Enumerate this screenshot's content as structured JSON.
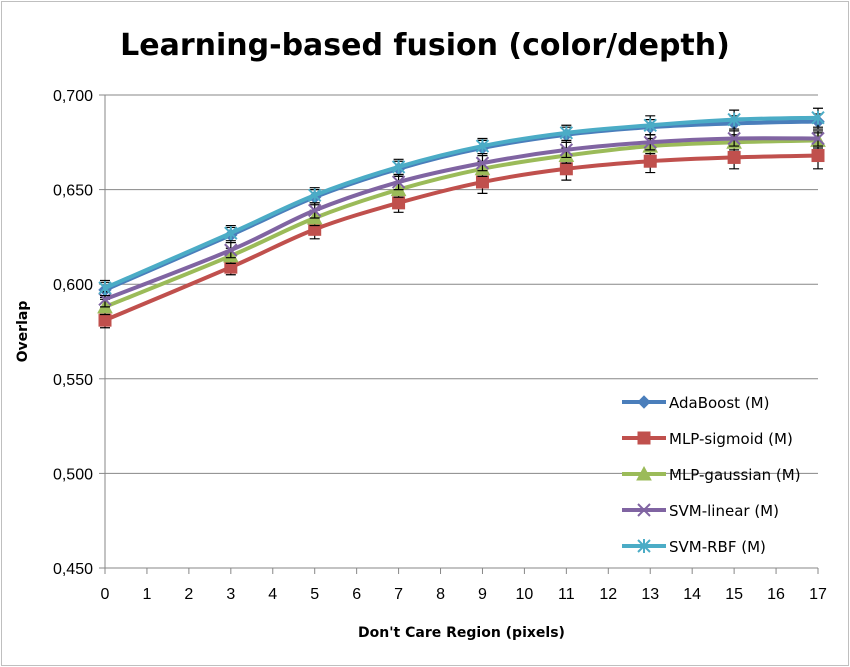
{
  "chart_data": {
    "type": "line",
    "title": "Learning-based fusion (color/depth)",
    "xlabel": "Don't Care Region (pixels)",
    "ylabel": "Overlap",
    "x": [
      0,
      3,
      5,
      7,
      9,
      11,
      13,
      15,
      17
    ],
    "xlim": [
      0,
      17
    ],
    "xticks": [
      "0",
      "1",
      "2",
      "3",
      "4",
      "5",
      "6",
      "7",
      "8",
      "9",
      "10",
      "11",
      "12",
      "13",
      "14",
      "15",
      "16",
      "17"
    ],
    "ylim": [
      0.45,
      0.7
    ],
    "yticks": [
      "0,450",
      "0,500",
      "0,550",
      "0,600",
      "0,650",
      "0,700"
    ],
    "grid": "horizontal",
    "legend_position": "bottom-right",
    "error_bars": true,
    "series": [
      {
        "name": "AdaBoost (M)",
        "color": "#4a7ebb",
        "marker": "diamond",
        "values": [
          0.597,
          0.626,
          0.646,
          0.661,
          0.672,
          0.679,
          0.683,
          0.685,
          0.686
        ],
        "errors": [
          0.004,
          0.004,
          0.004,
          0.004,
          0.004,
          0.004,
          0.004,
          0.004,
          0.004
        ]
      },
      {
        "name": "MLP-sigmoid (M)",
        "color": "#c0504d",
        "marker": "square",
        "values": [
          0.581,
          0.609,
          0.629,
          0.643,
          0.654,
          0.661,
          0.665,
          0.667,
          0.668
        ],
        "errors": [
          0.004,
          0.004,
          0.005,
          0.005,
          0.006,
          0.006,
          0.006,
          0.006,
          0.007
        ]
      },
      {
        "name": "MLP-gaussian (M)",
        "color": "#9bbb59",
        "marker": "triangle",
        "values": [
          0.588,
          0.615,
          0.635,
          0.65,
          0.661,
          0.668,
          0.673,
          0.675,
          0.676
        ],
        "errors": [
          0.004,
          0.004,
          0.004,
          0.004,
          0.004,
          0.004,
          0.004,
          0.004,
          0.004
        ]
      },
      {
        "name": "SVM-linear (M)",
        "color": "#8064a2",
        "marker": "x",
        "values": [
          0.592,
          0.618,
          0.639,
          0.654,
          0.664,
          0.671,
          0.675,
          0.677,
          0.677
        ],
        "errors": [
          0.004,
          0.004,
          0.004,
          0.004,
          0.004,
          0.004,
          0.004,
          0.004,
          0.004
        ]
      },
      {
        "name": "SVM-RBF (M)",
        "color": "#4bacc6",
        "marker": "asterisk",
        "values": [
          0.598,
          0.627,
          0.647,
          0.662,
          0.673,
          0.68,
          0.684,
          0.687,
          0.688
        ],
        "errors": [
          0.004,
          0.004,
          0.004,
          0.004,
          0.004,
          0.004,
          0.005,
          0.005,
          0.005
        ]
      }
    ]
  }
}
